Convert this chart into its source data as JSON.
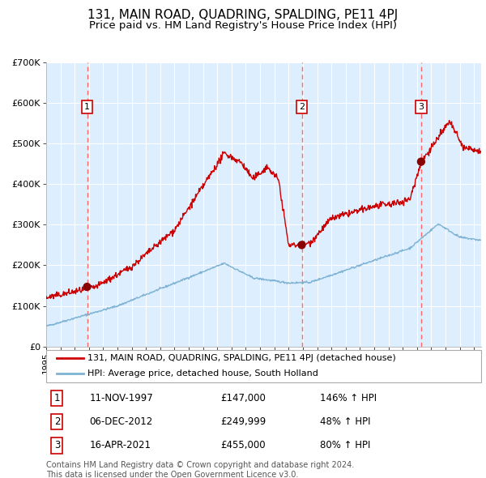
{
  "title": "131, MAIN ROAD, QUADRING, SPALDING, PE11 4PJ",
  "subtitle": "Price paid vs. HM Land Registry's House Price Index (HPI)",
  "legend_line1": "131, MAIN ROAD, QUADRING, SPALDING, PE11 4PJ (detached house)",
  "legend_line2": "HPI: Average price, detached house, South Holland",
  "footer": "Contains HM Land Registry data © Crown copyright and database right 2024.\nThis data is licensed under the Open Government Licence v3.0.",
  "table": [
    {
      "num": 1,
      "date": "11-NOV-1997",
      "price": "£147,000",
      "change": "146% ↑ HPI"
    },
    {
      "num": 2,
      "date": "06-DEC-2012",
      "price": "£249,999",
      "change": "48% ↑ HPI"
    },
    {
      "num": 3,
      "date": "16-APR-2021",
      "price": "£455,000",
      "change": "80% ↑ HPI"
    }
  ],
  "sale_dates": [
    1997.87,
    2012.92,
    2021.29
  ],
  "sale_prices": [
    147000,
    249999,
    455000
  ],
  "ylim": [
    0,
    700000
  ],
  "xlim_start": 1995.0,
  "xlim_end": 2025.5,
  "red_line_color": "#cc0000",
  "blue_line_color": "#7fb3d3",
  "background_color": "#ddeeff",
  "grid_color": "#ffffff",
  "vline_color": "#ff6666",
  "marker_color": "#880000",
  "title_fontsize": 11,
  "subtitle_fontsize": 9.5
}
